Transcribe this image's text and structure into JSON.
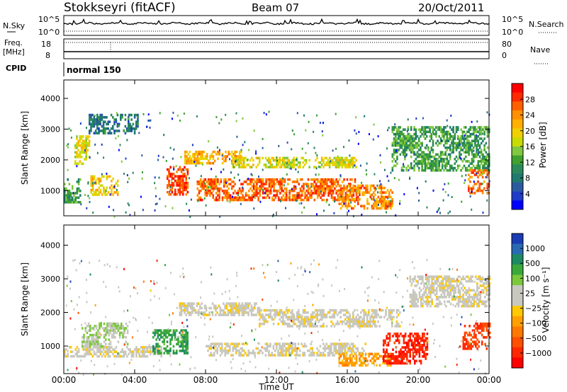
{
  "header": {
    "station": "Stokkseyri (fitACF)",
    "beam": "Beam 07",
    "date": "20/Oct/2011"
  },
  "noise_panel": {
    "left_label": "N.Sky",
    "right_label": "N.Search",
    "left_ticks": [
      "10^5",
      "10^0"
    ],
    "right_ticks": [
      "10^5",
      "10^0"
    ]
  },
  "freq_panel": {
    "left_label_1": "Freq.",
    "left_label_2": "[MHz]",
    "left_ticks": [
      "18",
      "8"
    ],
    "right_label": "Nave",
    "right_ticks": [
      "80",
      "0"
    ]
  },
  "cpid": {
    "label": "CPID",
    "mode": "normal 150"
  },
  "power_panel": {
    "ylabel": "Slant Range [km]",
    "yticks": [
      "4000",
      "3000",
      "2000",
      "1000"
    ],
    "colorbar_label": "Power [dB]",
    "colorbar_ticks": [
      "28",
      "24",
      "20",
      "16",
      "12",
      "8",
      "4"
    ],
    "colorbar_colors": [
      "#ff0000",
      "#ff2a00",
      "#ff6000",
      "#ff9000",
      "#ffb000",
      "#f0d000",
      "#c8dc00",
      "#80c840",
      "#40a030",
      "#2a8a5a",
      "#1e7a6e",
      "#2a5aa0",
      "#1e3cc8",
      "#0000ff"
    ]
  },
  "velocity_panel": {
    "ylabel": "Slant Range [km]",
    "yticks": [
      "4000",
      "3000",
      "2000",
      "1000"
    ],
    "colorbar_label": "Velocity [m s⁻¹]",
    "colorbar_ticks": [
      "1000",
      "500",
      "100",
      "25",
      "−25",
      "−100",
      "−500",
      "−1000"
    ],
    "colorbar_colors": [
      "#1a3cb4",
      "#2a6ab4",
      "#1e8a64",
      "#3ca83c",
      "#7cc83c",
      "#c8c8c0",
      "#c8c8c0",
      "#ffc800",
      "#ffa000",
      "#ff7800",
      "#ff5000",
      "#ff2800",
      "#ff0000"
    ]
  },
  "xaxis": {
    "label": "Time UT",
    "ticks": [
      "00:00",
      "04:00",
      "08:00",
      "12:00",
      "16:00",
      "20:00",
      "00:00"
    ]
  },
  "chart_data": [
    {
      "type": "heatmap",
      "title": "Power",
      "ylabel": "Slant Range [km]",
      "xlabel": "Time UT",
      "xlim": [
        "00:00",
        "24:00"
      ],
      "ylim": [
        180,
        4600
      ],
      "colorbar": "Power [dB]",
      "colorbar_range": [
        0,
        32
      ],
      "features": [
        {
          "t": [
            0.0,
            0.9
          ],
          "r": [
            600,
            1400
          ],
          "value_db": 12
        },
        {
          "t": [
            0.6,
            1.4
          ],
          "r": [
            1900,
            2800
          ],
          "value_db": 18
        },
        {
          "t": [
            1.5,
            3.0
          ],
          "r": [
            900,
            1500
          ],
          "value_db": 20
        },
        {
          "t": [
            5.8,
            7.0
          ],
          "r": [
            900,
            1800
          ],
          "value_db": 27
        },
        {
          "t": [
            1.4,
            4.2
          ],
          "r": [
            2900,
            3500
          ],
          "value_db": 8
        },
        {
          "t": [
            6.8,
            10.0
          ],
          "r": [
            1900,
            2300
          ],
          "value_db": 22
        },
        {
          "t": [
            7.5,
            16.5
          ],
          "r": [
            700,
            1400
          ],
          "value_db": 26
        },
        {
          "t": [
            9.5,
            16.5
          ],
          "r": [
            1800,
            2100
          ],
          "value_db": 18
        },
        {
          "t": [
            15.5,
            18.5
          ],
          "r": [
            400,
            1200
          ],
          "value_db": 24
        },
        {
          "t": [
            18.5,
            24.0
          ],
          "r": [
            1700,
            3100
          ],
          "value_db": 12
        },
        {
          "t": [
            22.8,
            24.0
          ],
          "r": [
            900,
            1700
          ],
          "value_db": 26
        }
      ]
    },
    {
      "type": "heatmap",
      "title": "Velocity",
      "ylabel": "Slant Range [km]",
      "xlabel": "Time UT",
      "xlim": [
        "00:00",
        "24:00"
      ],
      "ylim": [
        180,
        4600
      ],
      "colorbar": "Velocity [m s⁻¹]",
      "colorbar_range": [
        -1000,
        1000
      ],
      "features": [
        {
          "t": [
            0.0,
            5.5
          ],
          "r": [
            700,
            1000
          ],
          "value_ms": 0
        },
        {
          "t": [
            1.0,
            3.6
          ],
          "r": [
            1000,
            1700
          ],
          "value_ms": 200
        },
        {
          "t": [
            5.0,
            7.0
          ],
          "r": [
            800,
            1500
          ],
          "value_ms": 500
        },
        {
          "t": [
            6.5,
            11.0
          ],
          "r": [
            1900,
            2300
          ],
          "value_ms": 0
        },
        {
          "t": [
            8.0,
            17.0
          ],
          "r": [
            700,
            1100
          ],
          "value_ms": 0
        },
        {
          "t": [
            11.0,
            19.0
          ],
          "r": [
            1600,
            2100
          ],
          "value_ms": 0
        },
        {
          "t": [
            15.5,
            18.5
          ],
          "r": [
            400,
            800
          ],
          "value_ms": -300
        },
        {
          "t": [
            18.0,
            20.5
          ],
          "r": [
            500,
            1400
          ],
          "value_ms": -800
        },
        {
          "t": [
            19.5,
            24.0
          ],
          "r": [
            2200,
            3100
          ],
          "value_ms": 0
        },
        {
          "t": [
            22.5,
            24.0
          ],
          "r": [
            900,
            1700
          ],
          "value_ms": -700
        }
      ]
    }
  ]
}
